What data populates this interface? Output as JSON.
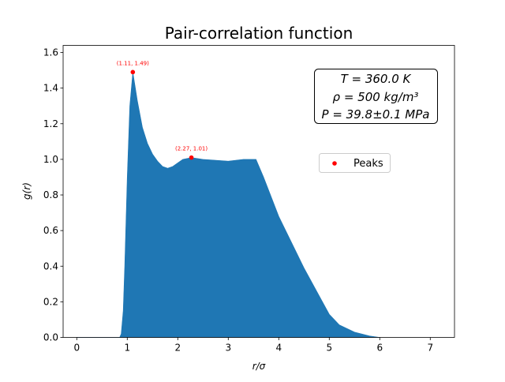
{
  "chart_data": {
    "type": "area",
    "title": "Pair-correlation function",
    "xlabel": "r/σ",
    "ylabel": "g(r)",
    "xlim": [
      -0.27,
      7.48
    ],
    "ylim": [
      0,
      1.64
    ],
    "xticks": [
      0,
      1,
      2,
      3,
      4,
      5,
      6,
      7
    ],
    "yticks": [
      0.0,
      0.2,
      0.4,
      0.6,
      0.8,
      1.0,
      1.2,
      1.4,
      1.6
    ],
    "ytick_labels": [
      "0.0",
      "0.2",
      "0.4",
      "0.6",
      "0.8",
      "1.0",
      "1.2",
      "1.4",
      "1.6"
    ],
    "color": "#1f77b4",
    "series": {
      "x": [
        0.0,
        0.85,
        0.88,
        0.92,
        0.95,
        1.0,
        1.05,
        1.11,
        1.15,
        1.2,
        1.3,
        1.4,
        1.5,
        1.6,
        1.7,
        1.8,
        1.9,
        2.0,
        2.1,
        2.27,
        2.5,
        3.0,
        3.3,
        3.55,
        3.7,
        4.0,
        4.5,
        5.0,
        5.2,
        5.5,
        5.8,
        6.0
      ],
      "y": [
        0.0,
        0.0,
        0.02,
        0.15,
        0.4,
        0.9,
        1.3,
        1.49,
        1.42,
        1.33,
        1.18,
        1.09,
        1.03,
        0.99,
        0.96,
        0.95,
        0.96,
        0.98,
        1.0,
        1.01,
        1.0,
        0.99,
        1.0,
        1.0,
        0.9,
        0.68,
        0.39,
        0.13,
        0.07,
        0.03,
        0.008,
        0.0
      ]
    },
    "peaks": {
      "name": "Peaks",
      "color": "#ff0000",
      "points": [
        {
          "x": 1.11,
          "y": 1.49,
          "label": "(1.11, 1.49)"
        },
        {
          "x": 2.27,
          "y": 1.01,
          "label": "(2.27, 1.01)"
        }
      ]
    },
    "legend": {
      "placement": "center-right",
      "entries": [
        "Peaks"
      ]
    },
    "textbox": [
      "T = 360.0 K",
      "ρ = 500 kg/m³",
      "P = 39.8±0.1 MPa"
    ],
    "grid": false
  }
}
